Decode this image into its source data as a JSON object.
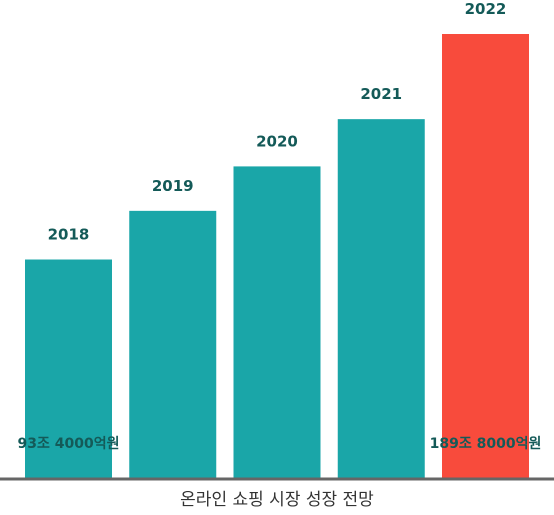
{
  "chart_data": {
    "type": "bar",
    "title": "온라인 쇼핑 시장 성장 전망",
    "categories": [
      "2018",
      "2019",
      "2020",
      "2021",
      "2022"
    ],
    "values": [
      93.4,
      114.2,
      133.2,
      153.4,
      189.8
    ],
    "unit": "조 원",
    "data_labels": [
      "93조 4000억원",
      "",
      "",
      "",
      "189조 8000억원"
    ],
    "bar_colors": [
      "#1aa6a8",
      "#1aa6a8",
      "#1aa6a8",
      "#1aa6a8",
      "#f84b3c"
    ],
    "ylim": [
      0,
      189.8
    ],
    "grid": false,
    "legend": "none",
    "xlabel": "",
    "ylabel": ""
  },
  "colors": {
    "primary_bar": "#1aa6a8",
    "highlight_bar": "#f84b3c",
    "label_text": "#145a58",
    "axis": "#666666"
  }
}
